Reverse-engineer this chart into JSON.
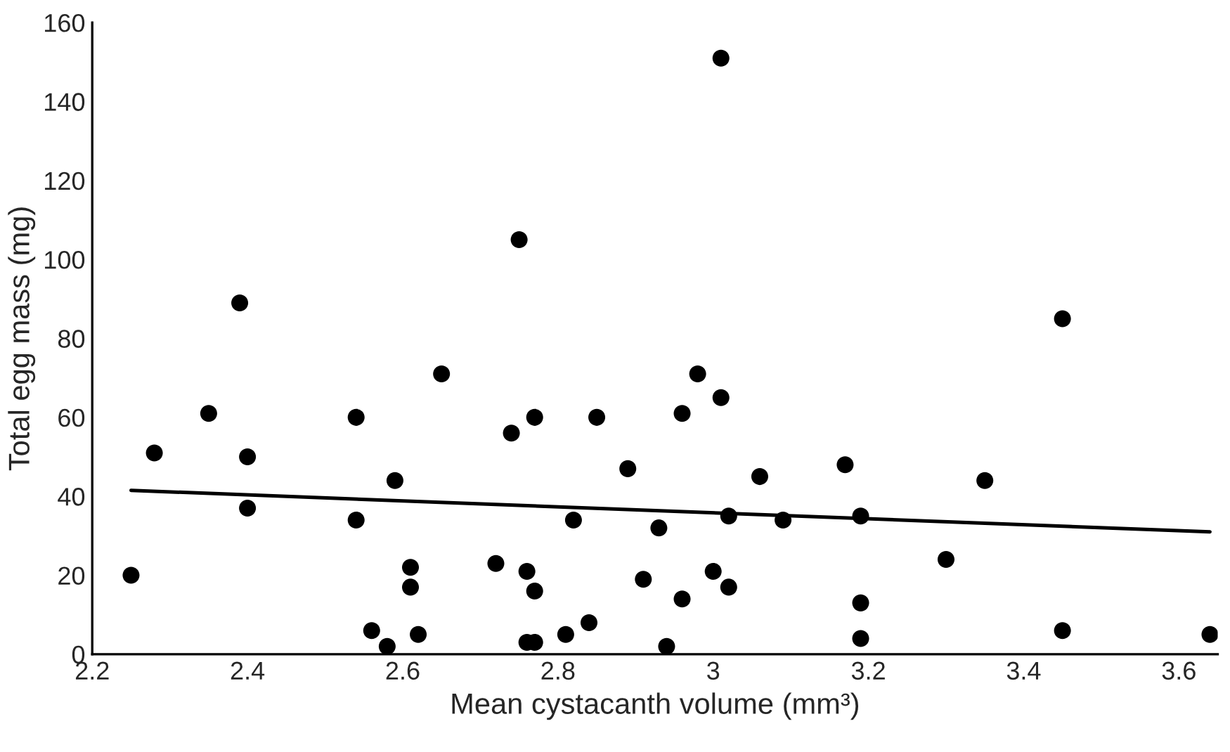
{
  "chart_data": {
    "type": "scatter",
    "xlabel": "Mean cystacanth volume (mm³)",
    "ylabel": "Total egg mass (mg)",
    "xlim": [
      2.2,
      3.65
    ],
    "xticks": [
      {
        "value": 2.2,
        "label": "2.2"
      },
      {
        "value": 2.4,
        "label": "2.4"
      },
      {
        "value": 2.6,
        "label": "2.6"
      },
      {
        "value": 2.8,
        "label": "2.8"
      },
      {
        "value": 3.0,
        "label": "3"
      },
      {
        "value": 3.2,
        "label": "3.2"
      },
      {
        "value": 3.4,
        "label": "3.4"
      },
      {
        "value": 3.6,
        "label": "3.6"
      }
    ],
    "ylim": [
      0,
      160
    ],
    "yticks": [
      0,
      20,
      40,
      60,
      80,
      100,
      120,
      140,
      160
    ],
    "grid": false,
    "marker": "circle",
    "series": [
      {
        "color": "#000000",
        "x": [
          2.25,
          2.28,
          2.35,
          2.39,
          2.4,
          2.4,
          2.54,
          2.54,
          2.56,
          2.58,
          2.59,
          2.61,
          2.61,
          2.62,
          2.65,
          2.72,
          2.74,
          2.75,
          2.76,
          2.76,
          2.77,
          2.77,
          2.77,
          2.81,
          2.82,
          2.84,
          2.85,
          2.89,
          2.91,
          2.93,
          2.94,
          2.96,
          2.96,
          2.98,
          3.0,
          3.01,
          3.01,
          3.02,
          3.02,
          3.06,
          3.09,
          3.17,
          3.19,
          3.19,
          3.19,
          3.3,
          3.35,
          3.45,
          3.45,
          3.64
        ],
        "values": [
          20,
          51,
          61,
          89,
          50,
          37,
          60,
          34,
          6,
          2,
          44,
          22,
          17,
          5,
          71,
          23,
          56,
          105,
          21,
          3,
          3,
          16,
          60,
          5,
          34,
          8,
          60,
          47,
          19,
          32,
          2,
          14,
          61,
          71,
          21,
          65,
          151,
          35,
          17,
          45,
          34,
          48,
          35,
          13,
          4,
          24,
          44,
          85,
          6,
          5
        ]
      },
      {
        "type": "line",
        "color": "#000000",
        "marker": "none",
        "x": [
          2.25,
          3.64
        ],
        "values": [
          41.5,
          31
        ]
      }
    ]
  }
}
